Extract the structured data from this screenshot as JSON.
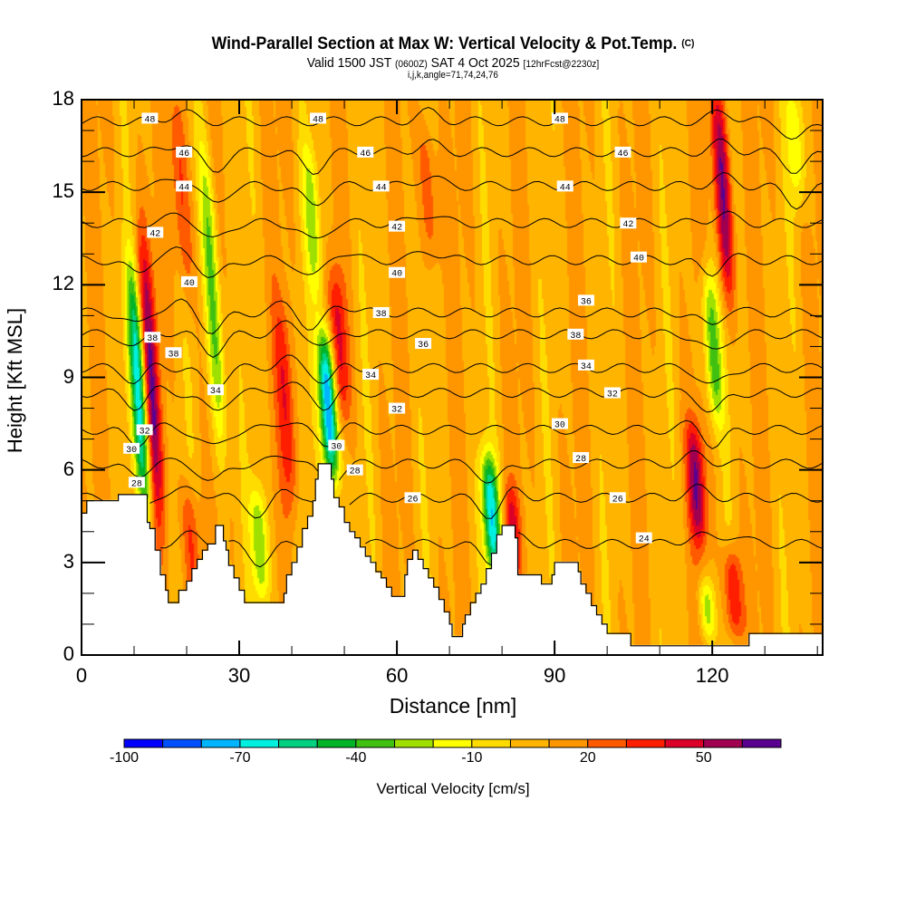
{
  "header": {
    "title": "Wind-Parallel Section at Max W: Vertical Velocity & Pot.Temp.",
    "copyright": "(C)",
    "valid_prefix": "Valid 1500 JST",
    "utc": "(0600Z)",
    "valid_date": "SAT 4 Oct 2025",
    "forecast": "[12hrFcst@2230z]",
    "indices": "i,j,k,angle=71,74,24,76"
  },
  "chart_data": {
    "type": "heatmap",
    "title": "Wind-Parallel Section at Max W: Vertical Velocity & Pot.Temp.",
    "xlabel": "Distance [nm]",
    "ylabel": "Height [Kft MSL]",
    "xlim": [
      0,
      141
    ],
    "ylim": [
      0,
      18
    ],
    "x_ticks": [
      "0",
      "30",
      "60",
      "90",
      "120"
    ],
    "x_tick_values": [
      0,
      30,
      60,
      90,
      120
    ],
    "x_minor_step": 10,
    "y_ticks": [
      "0",
      "3",
      "6",
      "9",
      "12",
      "15",
      "18"
    ],
    "y_tick_values": [
      0,
      3,
      6,
      9,
      12,
      15,
      18
    ],
    "y_minor_step": 1,
    "colorbar": {
      "label": "Vertical Velocity [cm/s]",
      "levels": [
        -100,
        -90,
        -80,
        -70,
        -60,
        -50,
        -40,
        -30,
        -20,
        -10,
        0,
        10,
        20,
        30,
        40,
        50,
        60,
        70
      ],
      "tick_labels": [
        "-100",
        "-70",
        "-40",
        "-10",
        "20",
        "50"
      ],
      "tick_values": [
        -100,
        -70,
        -40,
        -10,
        20,
        50
      ],
      "colors": [
        "#0000ff",
        "#0050ff",
        "#00b4ff",
        "#00f0e0",
        "#00d080",
        "#00b428",
        "#40c010",
        "#a0e000",
        "#ffff00",
        "#ffdc00",
        "#ffb400",
        "#ff9600",
        "#ff5a00",
        "#ff1e00",
        "#dc0028",
        "#a00050",
        "#5a0090"
      ]
    },
    "updrafts": [
      {
        "x": 13,
        "z_top": 13,
        "z_bottom": 5,
        "w": 55
      },
      {
        "x": 19,
        "z_top": 18,
        "z_bottom": 12,
        "w": 30
      },
      {
        "x": 39,
        "z_top": 11,
        "z_bottom": 5,
        "w": 30
      },
      {
        "x": 49,
        "z_top": 12,
        "z_bottom": 8,
        "w": 35
      },
      {
        "x": 21,
        "z_top": 5,
        "z_bottom": 2,
        "w": 30
      },
      {
        "x": 66,
        "z_top": 17,
        "z_bottom": 13,
        "w": 25
      },
      {
        "x": 82,
        "z_top": 5,
        "z_bottom": 3,
        "w": 30
      },
      {
        "x": 122,
        "z_top": 18,
        "z_bottom": 12,
        "w": 55
      },
      {
        "x": 117,
        "z_top": 7,
        "z_bottom": 4,
        "w": 50
      },
      {
        "x": 124,
        "z_top": 3,
        "z_bottom": 1,
        "w": 40
      }
    ],
    "downdrafts": [
      {
        "x": 11,
        "z_top": 12,
        "z_bottom": 5,
        "w": -75
      },
      {
        "x": 25,
        "z_top": 16,
        "z_bottom": 7,
        "w": -45
      },
      {
        "x": 34,
        "z_top": 5,
        "z_bottom": 2,
        "w": -40
      },
      {
        "x": 47,
        "z_top": 10,
        "z_bottom": 6,
        "w": -95
      },
      {
        "x": 78,
        "z_top": 6,
        "z_bottom": 3,
        "w": -75
      },
      {
        "x": 120,
        "z_top": 12,
        "z_bottom": 8,
        "w": -45
      },
      {
        "x": 44,
        "z_top": 16,
        "z_bottom": 12,
        "w": -30
      },
      {
        "x": 136,
        "z_top": 18,
        "z_bottom": 15,
        "w": -25
      },
      {
        "x": 119,
        "z_top": 2,
        "z_bottom": 1,
        "w": -30
      }
    ],
    "terrain": [
      [
        0,
        4.6
      ],
      [
        1,
        5.0
      ],
      [
        6,
        5.0
      ],
      [
        7,
        5.2
      ],
      [
        12,
        5.2
      ],
      [
        12.5,
        4.3
      ],
      [
        13,
        4.1
      ],
      [
        14,
        3.4
      ],
      [
        15,
        2.6
      ],
      [
        16,
        2.1
      ],
      [
        16.5,
        1.7
      ],
      [
        18,
        1.7
      ],
      [
        18.5,
        2.1
      ],
      [
        20,
        2.4
      ],
      [
        21,
        2.8
      ],
      [
        22,
        3.1
      ],
      [
        23,
        3.4
      ],
      [
        24,
        3.6
      ],
      [
        25.5,
        4.2
      ],
      [
        27,
        3.7
      ],
      [
        27.5,
        3.4
      ],
      [
        28,
        2.9
      ],
      [
        29,
        2.5
      ],
      [
        30,
        2.1
      ],
      [
        31,
        1.7
      ],
      [
        38,
        1.7
      ],
      [
        38.5,
        2.0
      ],
      [
        39,
        2.6
      ],
      [
        40,
        3.0
      ],
      [
        41,
        3.5
      ],
      [
        42,
        4.1
      ],
      [
        43,
        4.5
      ],
      [
        44,
        5.0
      ],
      [
        44.5,
        5.7
      ],
      [
        45,
        6.2
      ],
      [
        47,
        6.2
      ],
      [
        47.5,
        5.7
      ],
      [
        48,
        5.1
      ],
      [
        49,
        4.8
      ],
      [
        50,
        4.3
      ],
      [
        51,
        4.0
      ],
      [
        52,
        3.8
      ],
      [
        53,
        3.5
      ],
      [
        54,
        3.2
      ],
      [
        55,
        3.0
      ],
      [
        56,
        2.7
      ],
      [
        57,
        2.5
      ],
      [
        58,
        2.2
      ],
      [
        59,
        1.9
      ],
      [
        61,
        1.9
      ],
      [
        61.5,
        2.6
      ],
      [
        62,
        3.1
      ],
      [
        63,
        3.4
      ],
      [
        64,
        3.1
      ],
      [
        65,
        2.8
      ],
      [
        66,
        2.5
      ],
      [
        67,
        2.2
      ],
      [
        68,
        1.8
      ],
      [
        69,
        1.4
      ],
      [
        70,
        1.0
      ],
      [
        70.5,
        0.6
      ],
      [
        72,
        0.6
      ],
      [
        72.5,
        1.0
      ],
      [
        73,
        1.3
      ],
      [
        74,
        1.7
      ],
      [
        75,
        2.0
      ],
      [
        76,
        2.3
      ],
      [
        77,
        2.8
      ],
      [
        78,
        3.3
      ],
      [
        79,
        3.9
      ],
      [
        80,
        4.2
      ],
      [
        82,
        4.2
      ],
      [
        82.5,
        3.8
      ],
      [
        83,
        2.6
      ],
      [
        87,
        2.6
      ],
      [
        87.5,
        2.3
      ],
      [
        89,
        2.3
      ],
      [
        89.5,
        2.6
      ],
      [
        90,
        3.0
      ],
      [
        94,
        3.0
      ],
      [
        94.5,
        2.7
      ],
      [
        95,
        2.3
      ],
      [
        96,
        2.0
      ],
      [
        97,
        1.6
      ],
      [
        98,
        1.3
      ],
      [
        99,
        1.0
      ],
      [
        100,
        0.7
      ],
      [
        104,
        0.7
      ],
      [
        104.5,
        0.3
      ],
      [
        110,
        0.3
      ],
      [
        113,
        0.3
      ],
      [
        113.5,
        0.3
      ],
      [
        126,
        0.3
      ],
      [
        127,
        0.7
      ],
      [
        141,
        0.7
      ]
    ],
    "theta_contours": [
      {
        "label": "24",
        "base_z": 3.6
      },
      {
        "label": "26",
        "base_z": 5.1
      },
      {
        "label": "28",
        "base_z": 6.2
      },
      {
        "label": "30",
        "base_z": 7.3
      },
      {
        "label": "32",
        "base_z": 8.5
      },
      {
        "label": "34",
        "base_z": 9.3
      },
      {
        "label": "36",
        "base_z": 10.4
      },
      {
        "label": "38",
        "base_z": 11.1
      },
      {
        "label": "40",
        "base_z": 12.8
      },
      {
        "label": "42",
        "base_z": 14.0
      },
      {
        "label": "44",
        "base_z": 15.2
      },
      {
        "label": "46",
        "base_z": 16.3
      },
      {
        "label": "48",
        "base_z": 17.3
      }
    ],
    "contour_labels": [
      {
        "text": "48",
        "x": 13,
        "z": 17.4
      },
      {
        "text": "48",
        "x": 45,
        "z": 17.4
      },
      {
        "text": "48",
        "x": 91,
        "z": 17.4
      },
      {
        "text": "46",
        "x": 19.5,
        "z": 16.3
      },
      {
        "text": "46",
        "x": 54,
        "z": 16.3
      },
      {
        "text": "46",
        "x": 103,
        "z": 16.3
      },
      {
        "text": "44",
        "x": 19.5,
        "z": 15.2
      },
      {
        "text": "44",
        "x": 57,
        "z": 15.2
      },
      {
        "text": "44",
        "x": 92,
        "z": 15.2
      },
      {
        "text": "42",
        "x": 14,
        "z": 13.7
      },
      {
        "text": "42",
        "x": 60,
        "z": 13.9
      },
      {
        "text": "42",
        "x": 104,
        "z": 14.0
      },
      {
        "text": "40",
        "x": 20.5,
        "z": 12.1
      },
      {
        "text": "40",
        "x": 60,
        "z": 12.4
      },
      {
        "text": "40",
        "x": 106,
        "z": 12.9
      },
      {
        "text": "38",
        "x": 13.5,
        "z": 10.3
      },
      {
        "text": "38",
        "x": 17.5,
        "z": 9.8
      },
      {
        "text": "38",
        "x": 57,
        "z": 11.1
      },
      {
        "text": "38",
        "x": 94,
        "z": 10.4
      },
      {
        "text": "36",
        "x": 65,
        "z": 10.1
      },
      {
        "text": "36",
        "x": 96,
        "z": 11.5
      },
      {
        "text": "34",
        "x": 25.5,
        "z": 8.6
      },
      {
        "text": "34",
        "x": 55,
        "z": 9.1
      },
      {
        "text": "34",
        "x": 96,
        "z": 9.4
      },
      {
        "text": "32",
        "x": 12,
        "z": 7.3
      },
      {
        "text": "32",
        "x": 60,
        "z": 8.0
      },
      {
        "text": "32",
        "x": 101,
        "z": 8.5
      },
      {
        "text": "30",
        "x": 9.5,
        "z": 6.7
      },
      {
        "text": "30",
        "x": 48.5,
        "z": 6.8
      },
      {
        "text": "30",
        "x": 91,
        "z": 7.5
      },
      {
        "text": "28",
        "x": 10.5,
        "z": 5.6
      },
      {
        "text": "28",
        "x": 52,
        "z": 6.0
      },
      {
        "text": "28",
        "x": 95,
        "z": 6.4
      },
      {
        "text": "26",
        "x": 63,
        "z": 5.1
      },
      {
        "text": "26",
        "x": 102,
        "z": 5.1
      },
      {
        "text": "24",
        "x": 107,
        "z": 3.8
      }
    ]
  }
}
